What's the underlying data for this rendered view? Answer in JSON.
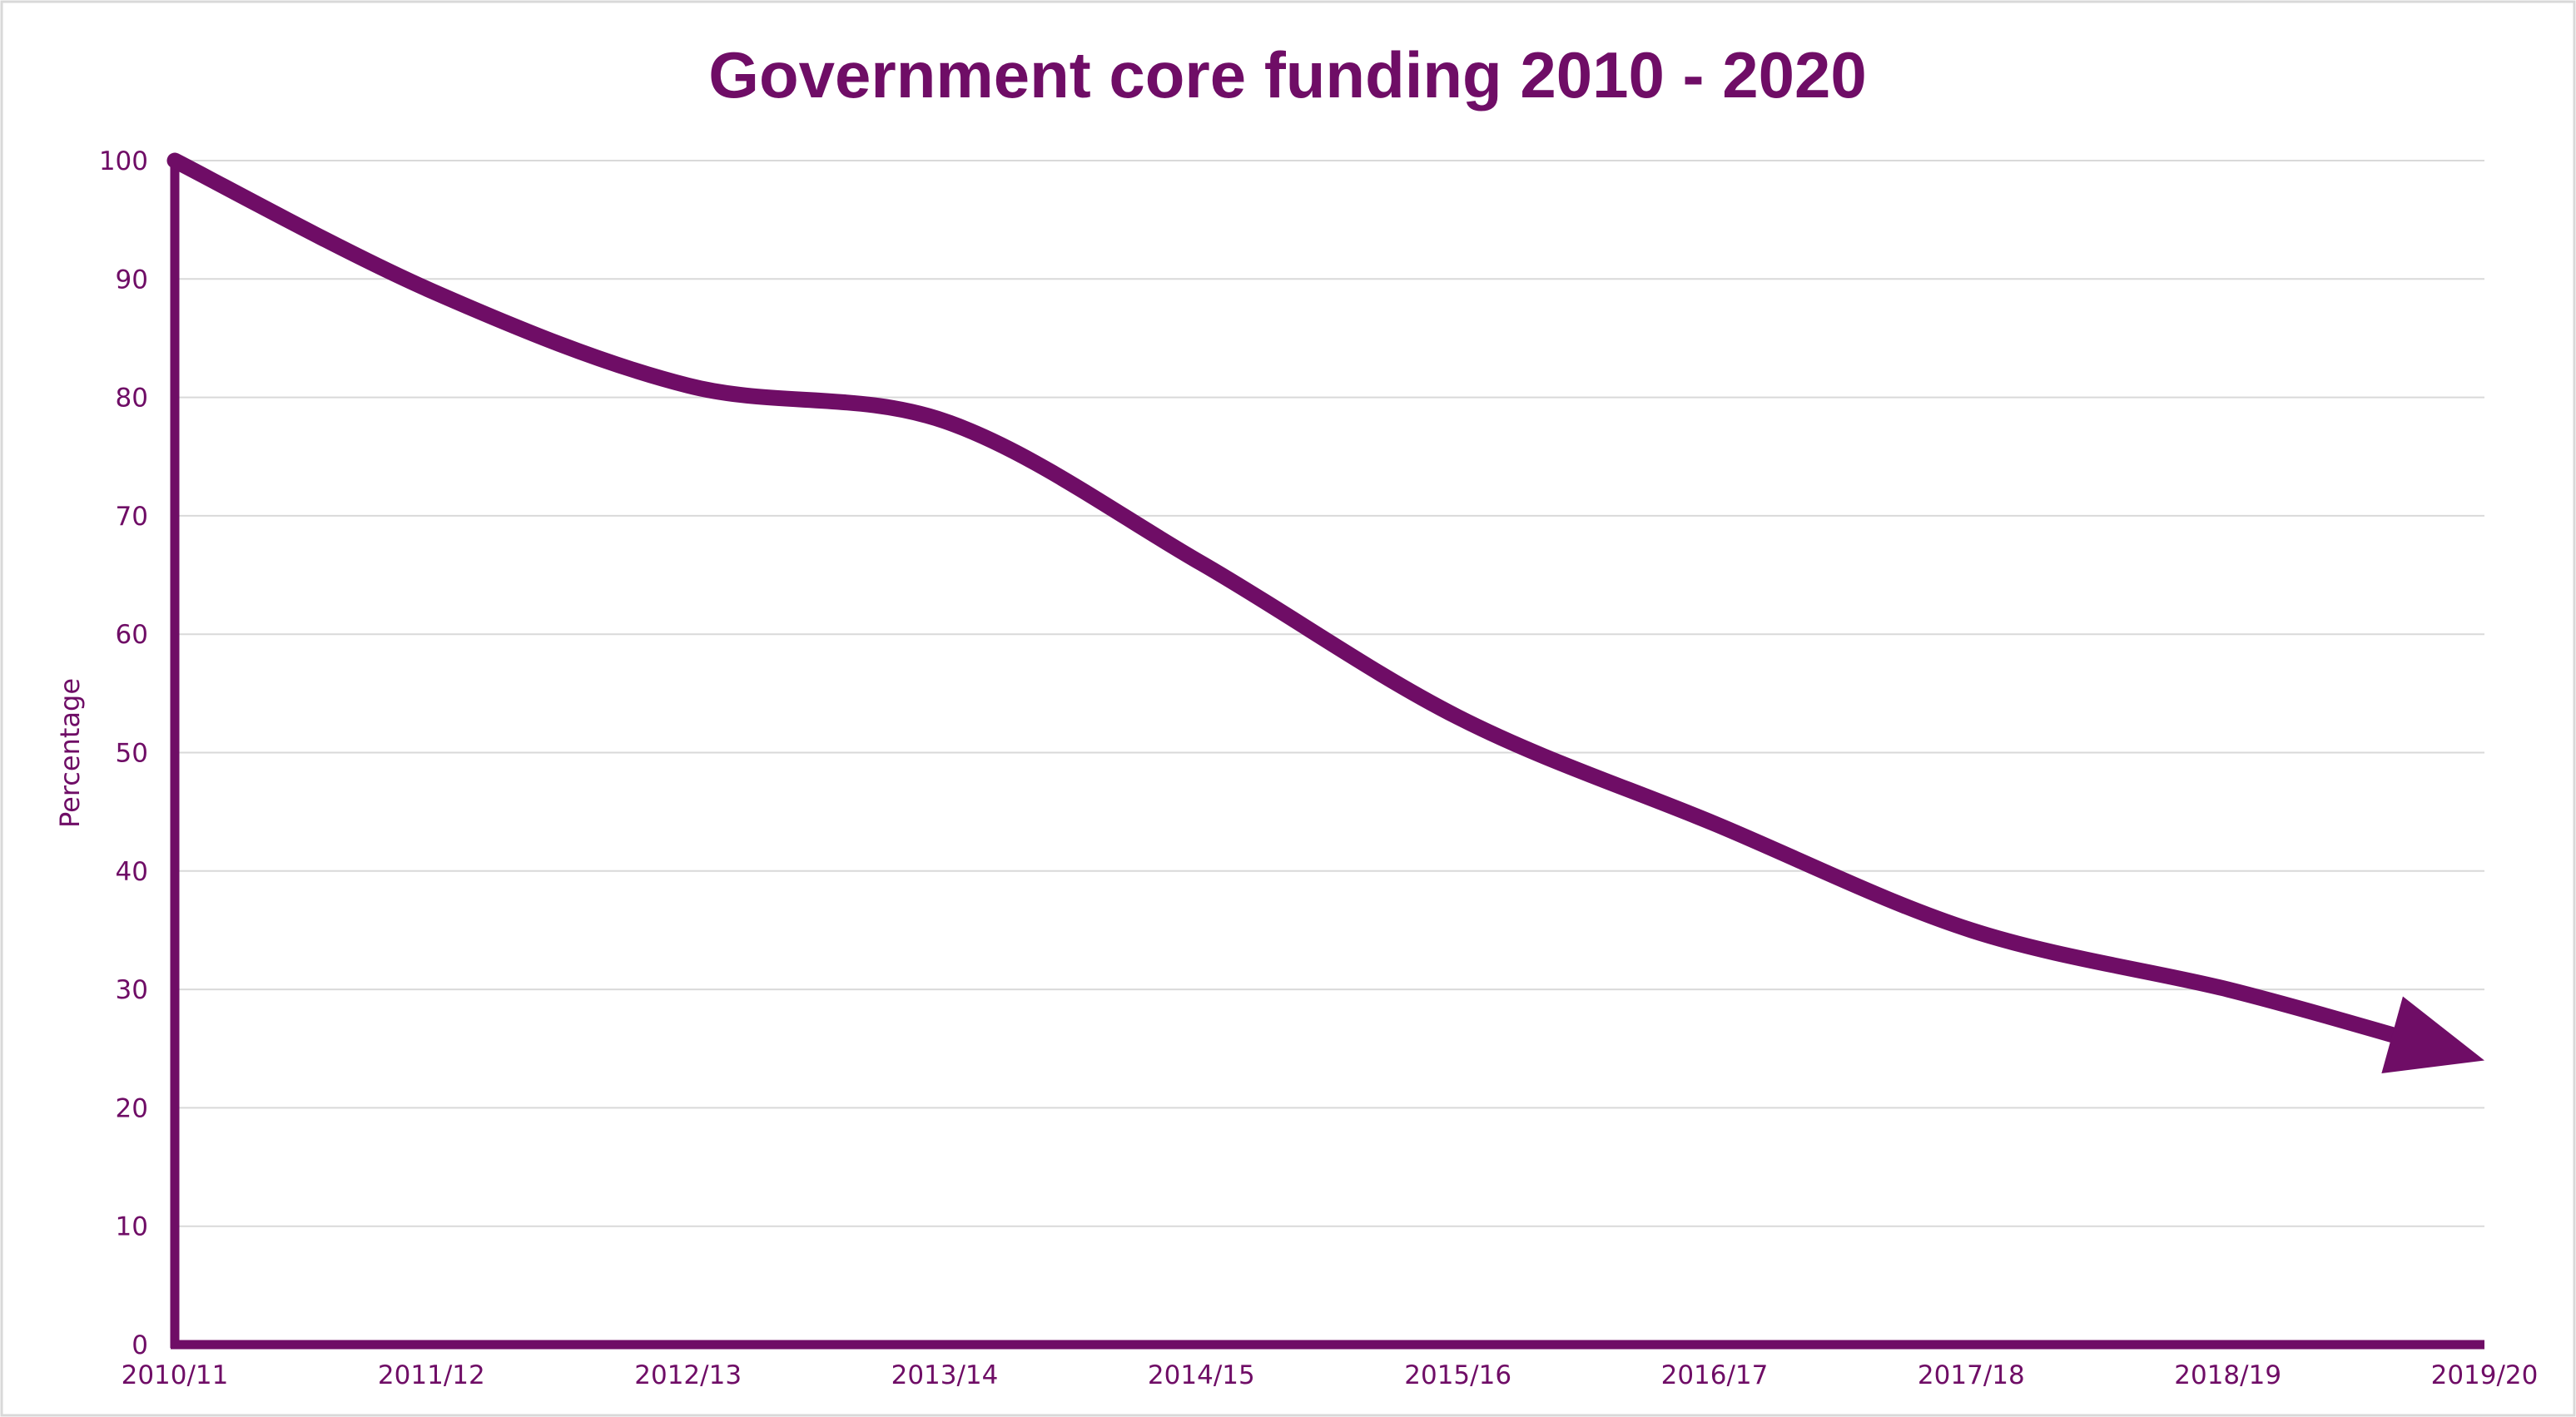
{
  "chart_data": {
    "type": "line",
    "title": "Government core funding 2010 - 2020",
    "xlabel": "",
    "ylabel": "Percentage",
    "categories": [
      "2010/11",
      "2011/12",
      "2012/13",
      "2013/14",
      "2014/15",
      "2015/16",
      "2016/17",
      "2017/18",
      "2018/19",
      "2019/20"
    ],
    "series": [
      {
        "values": [
          100,
          89,
          81,
          78,
          66,
          53,
          44,
          35,
          30,
          24
        ]
      }
    ],
    "ylim": [
      0,
      100
    ],
    "yticks": [
      0,
      10,
      20,
      30,
      40,
      50,
      60,
      70,
      80,
      90,
      100
    ],
    "grid": true,
    "legend": "none",
    "line_end": "arrow"
  },
  "colors": {
    "accent": "#6f0d66",
    "grid": "#d9d9d9",
    "frame": "#d9d9d9",
    "background": "#ffffff"
  }
}
